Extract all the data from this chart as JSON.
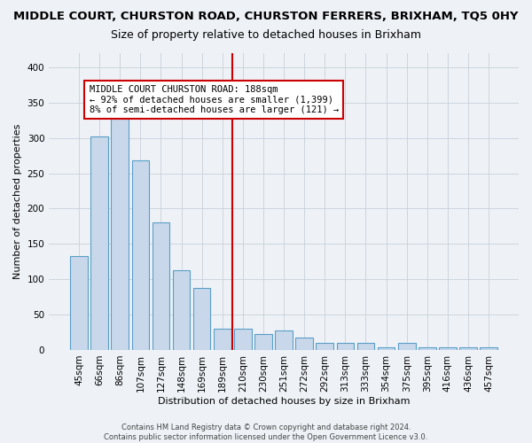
{
  "title": "MIDDLE COURT, CHURSTON ROAD, CHURSTON FERRERS, BRIXHAM, TQ5 0HY",
  "subtitle": "Size of property relative to detached houses in Brixham",
  "xlabel": "Distribution of detached houses by size in Brixham",
  "ylabel": "Number of detached properties",
  "categories": [
    "45sqm",
    "66sqm",
    "86sqm",
    "107sqm",
    "127sqm",
    "148sqm",
    "169sqm",
    "189sqm",
    "210sqm",
    "230sqm",
    "251sqm",
    "272sqm",
    "292sqm",
    "313sqm",
    "333sqm",
    "354sqm",
    "375sqm",
    "395sqm",
    "416sqm",
    "436sqm",
    "457sqm"
  ],
  "values": [
    133,
    302,
    327,
    268,
    180,
    113,
    88,
    30,
    30,
    22,
    27,
    18,
    10,
    10,
    10,
    4,
    10,
    4,
    4,
    4,
    4
  ],
  "bar_color": "#c8d8ea",
  "bar_edge_color": "#5a9ec8",
  "vline_color": "#cc0000",
  "annotation_line1": "MIDDLE COURT CHURSTON ROAD: 188sqm",
  "annotation_line2": "← 92% of detached houses are smaller (1,399)",
  "annotation_line3": "8% of semi-detached houses are larger (121) →",
  "annotation_box_color": "#ffffff",
  "annotation_box_edge": "#cc0000",
  "footer1": "Contains HM Land Registry data © Crown copyright and database right 2024.",
  "footer2": "Contains public sector information licensed under the Open Government Licence v3.0.",
  "bg_color": "#eef2f7",
  "ylim": [
    0,
    420
  ],
  "yticks": [
    0,
    50,
    100,
    150,
    200,
    250,
    300,
    350,
    400
  ],
  "title_fontsize": 9.5,
  "subtitle_fontsize": 9,
  "tick_fontsize": 7.5,
  "ylabel_fontsize": 8,
  "xlabel_fontsize": 8,
  "footer_fontsize": 6,
  "annotation_fontsize": 7.5
}
